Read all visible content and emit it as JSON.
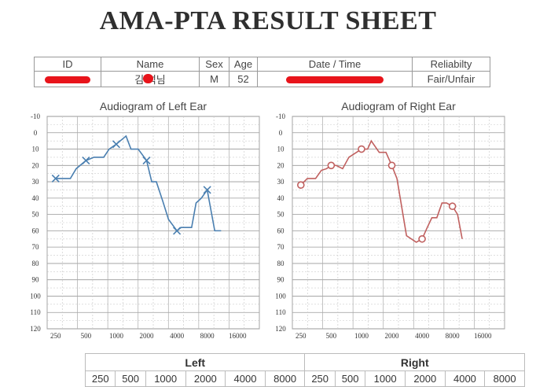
{
  "header": {
    "title": "AMA-PTA RESULT SHEET"
  },
  "info": {
    "labels": {
      "id": "ID",
      "name": "Name",
      "sex": "Sex",
      "age": "Age",
      "datetime": "Date / Time",
      "reliability": "Reliabilty"
    },
    "values": {
      "name_visible": "김 석님",
      "sex": "M",
      "age": "52",
      "reliability": "Fair/Unfair"
    },
    "redaction_color": "#e8141b"
  },
  "chart_data": [
    {
      "type": "line",
      "title": "Audiogram of Left Ear",
      "x_ticks": [
        "250",
        "500",
        "1000",
        "2000",
        "4000",
        "8000",
        "16000"
      ],
      "y_ticks": [
        "-10",
        "0",
        "10",
        "20",
        "30",
        "40",
        "50",
        "60",
        "70",
        "80",
        "90",
        "100",
        "110",
        "120"
      ],
      "ylim": [
        -10,
        120
      ],
      "y_inverted": true,
      "x_scale": "log2",
      "grid": true,
      "color": "#4a7fb0",
      "marker": "cross",
      "series": [
        {
          "values": [
            [
              250,
              28
            ],
            [
              280,
              28
            ],
            [
              350,
              28
            ],
            [
              400,
              22
            ],
            [
              500,
              17
            ],
            [
              600,
              15
            ],
            [
              750,
              15
            ],
            [
              850,
              10
            ],
            [
              1000,
              7
            ],
            [
              1250,
              2
            ],
            [
              1400,
              10
            ],
            [
              1650,
              10
            ],
            [
              2000,
              17
            ],
            [
              2250,
              30
            ],
            [
              2500,
              30
            ],
            [
              2900,
              42
            ],
            [
              3300,
              53
            ],
            [
              4000,
              60
            ],
            [
              4400,
              58
            ],
            [
              5600,
              58
            ],
            [
              6200,
              43
            ],
            [
              7000,
              40
            ],
            [
              8000,
              35
            ],
            [
              9500,
              60
            ],
            [
              11000,
              60
            ]
          ],
          "markers": [
            [
              250,
              28
            ],
            [
              500,
              17
            ],
            [
              1000,
              7
            ],
            [
              2000,
              17
            ],
            [
              4000,
              60
            ],
            [
              8000,
              35
            ]
          ]
        }
      ]
    },
    {
      "type": "line",
      "title": "Audiogram of Right Ear",
      "x_ticks": [
        "250",
        "500",
        "1000",
        "2000",
        "4000",
        "8000",
        "16000"
      ],
      "y_ticks": [
        "-10",
        "0",
        "10",
        "20",
        "30",
        "40",
        "50",
        "60",
        "70",
        "80",
        "90",
        "100",
        "110",
        "120"
      ],
      "ylim": [
        -10,
        120
      ],
      "y_inverted": true,
      "x_scale": "log2",
      "grid": true,
      "color": "#c0605f",
      "marker": "circle",
      "series": [
        {
          "values": [
            [
              250,
              32
            ],
            [
              290,
              28
            ],
            [
              350,
              28
            ],
            [
              400,
              23
            ],
            [
              450,
              22
            ],
            [
              500,
              20
            ],
            [
              560,
              20
            ],
            [
              650,
              22
            ],
            [
              750,
              15
            ],
            [
              1000,
              10
            ],
            [
              1150,
              10
            ],
            [
              1250,
              5
            ],
            [
              1500,
              12
            ],
            [
              1750,
              12
            ],
            [
              2000,
              20
            ],
            [
              2250,
              28
            ],
            [
              2800,
              63
            ],
            [
              3500,
              67
            ],
            [
              4000,
              65
            ],
            [
              4500,
              58
            ],
            [
              5000,
              52
            ],
            [
              5600,
              52
            ],
            [
              6300,
              43
            ],
            [
              7000,
              43
            ],
            [
              8000,
              45
            ],
            [
              9000,
              50
            ],
            [
              10000,
              65
            ]
          ],
          "markers": [
            [
              250,
              32
            ],
            [
              500,
              20
            ],
            [
              1000,
              10
            ],
            [
              2000,
              20
            ],
            [
              4000,
              65
            ],
            [
              8000,
              45
            ]
          ]
        }
      ]
    }
  ],
  "bottom_table": {
    "left_header": "Left",
    "right_header": "Right",
    "left_freqs": [
      "250",
      "500",
      "1000",
      "2000",
      "4000",
      "8000"
    ],
    "right_freqs": [
      "250",
      "500",
      "1000",
      "2000",
      "4000",
      "8000"
    ]
  }
}
